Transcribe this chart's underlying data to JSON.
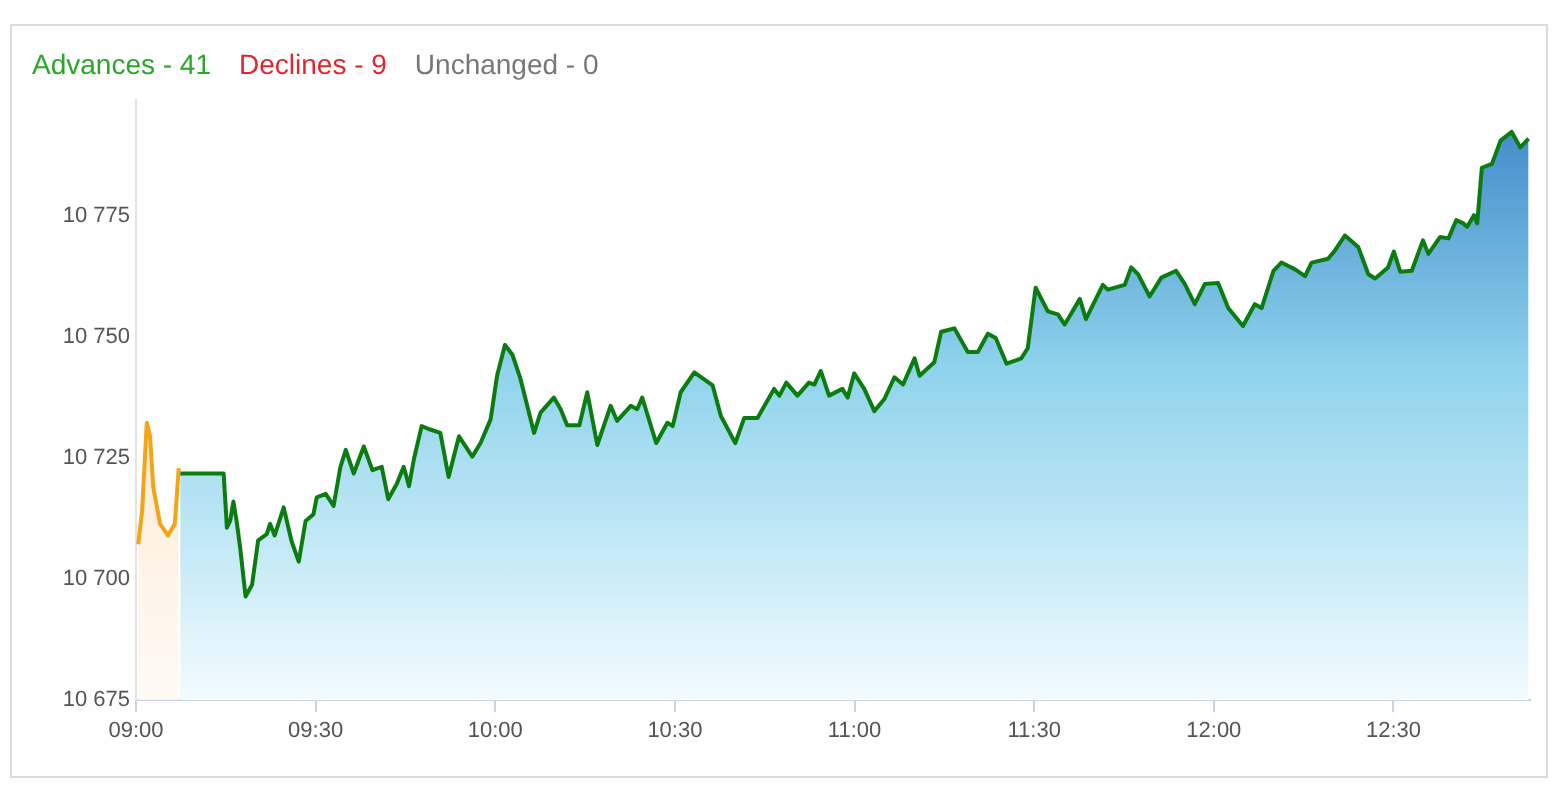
{
  "chart_data": {
    "type": "area",
    "annotations": [
      "Advances - 41",
      "Declines - 9",
      "Unchanged - 0"
    ],
    "xlim": [
      9,
      12.88
    ],
    "xticks": [
      {
        "value": 9,
        "label": "09:00"
      },
      {
        "value": 9.5,
        "label": "09:30"
      },
      {
        "value": 10,
        "label": "10:00"
      },
      {
        "value": 10.5,
        "label": "10:30"
      },
      {
        "value": 11,
        "label": "11:00"
      },
      {
        "value": 11.5,
        "label": "11:30"
      },
      {
        "value": 12,
        "label": "12:00"
      },
      {
        "value": 12.5,
        "label": "12:30"
      }
    ],
    "ylim": [
      10675,
      10799
    ],
    "yticks": [
      {
        "value": 10675,
        "label": "10 675"
      },
      {
        "value": 10700,
        "label": "10 700"
      },
      {
        "value": 10725,
        "label": "10 725"
      },
      {
        "value": 10750,
        "label": "10 750"
      },
      {
        "value": 10775,
        "label": "10 775"
      }
    ],
    "series": [
      {
        "color": "#f5a418",
        "x": [
          9.006,
          9.017,
          9.03,
          9.039,
          9.048,
          9.067,
          9.089,
          9.108,
          9.119
        ],
        "values": [
          10707.2,
          10714.1,
          10732.3,
          10729.5,
          10719,
          10711.4,
          10709,
          10711.4,
          10722.9
        ]
      },
      {
        "color": "#0b7d10",
        "x": [
          9.123,
          9.244,
          9.253,
          9.262,
          9.271,
          9.28,
          9.29,
          9.305,
          9.323,
          9.34,
          9.364,
          9.373,
          9.386,
          9.411,
          9.433,
          9.453,
          9.472,
          9.494,
          9.503,
          9.528,
          9.55,
          9.569,
          9.584,
          9.606,
          9.634,
          9.658,
          9.684,
          9.702,
          9.726,
          9.745,
          9.76,
          9.773,
          9.795,
          9.819,
          9.847,
          9.87,
          9.899,
          9.936,
          9.959,
          9.987,
          10.005,
          10.027,
          10.048,
          10.07,
          10.108,
          10.126,
          10.163,
          10.182,
          10.2,
          10.234,
          10.256,
          10.284,
          10.321,
          10.339,
          10.377,
          10.395,
          10.409,
          10.423,
          10.448,
          10.479,
          10.494,
          10.516,
          10.554,
          10.605,
          10.628,
          10.668,
          10.693,
          10.73,
          10.776,
          10.791,
          10.81,
          10.841,
          10.873,
          10.888,
          10.906,
          10.929,
          10.966,
          10.981,
          10.999,
          11.027,
          11.055,
          11.083,
          11.111,
          11.135,
          11.167,
          11.181,
          11.222,
          11.241,
          11.278,
          11.315,
          11.343,
          11.371,
          11.393,
          11.423,
          11.464,
          11.482,
          11.504,
          11.538,
          11.566,
          11.585,
          11.627,
          11.644,
          11.691,
          11.705,
          11.752,
          11.77,
          11.789,
          11.821,
          11.854,
          11.895,
          11.919,
          11.947,
          11.975,
          12.012,
          12.04,
          12.081,
          12.114,
          12.133,
          12.166,
          12.188,
          12.226,
          12.254,
          12.272,
          12.318,
          12.337,
          12.365,
          12.402,
          12.43,
          12.449,
          12.485,
          12.501,
          12.519,
          12.551,
          12.582,
          12.597,
          12.63,
          12.653,
          12.675,
          12.694,
          12.705,
          12.724,
          12.733,
          12.746,
          12.774,
          12.798,
          12.829,
          12.853,
          12.876
        ],
        "values": [
          10721.8,
          10721.8,
          10710.6,
          10712,
          10716,
          10712,
          10706.4,
          10696.4,
          10698.8,
          10708,
          10709.3,
          10711.4,
          10709,
          10714.8,
          10707.8,
          10703.6,
          10712,
          10713.4,
          10716.9,
          10717.6,
          10715.1,
          10723.2,
          10726.7,
          10721.8,
          10727.4,
          10722.5,
          10723.2,
          10716.5,
          10719.7,
          10723.2,
          10719.2,
          10724.6,
          10731.6,
          10730.9,
          10730.2,
          10721.1,
          10729.5,
          10725.3,
          10728.1,
          10733,
          10742,
          10748.4,
          10746.3,
          10741.4,
          10730.2,
          10734.4,
          10737.5,
          10735.1,
          10731.8,
          10731.8,
          10738.6,
          10727.7,
          10735.8,
          10732.7,
          10735.8,
          10735.1,
          10737.5,
          10734.1,
          10728.1,
          10732.3,
          10731.6,
          10738.6,
          10742.7,
          10740,
          10733.7,
          10728.1,
          10733.3,
          10733.3,
          10739.3,
          10737.9,
          10740.6,
          10737.9,
          10740.6,
          10740.2,
          10743,
          10737.9,
          10739.3,
          10737.5,
          10742.5,
          10739.3,
          10734.7,
          10737.2,
          10741.7,
          10740.2,
          10745.6,
          10742,
          10744.8,
          10751.1,
          10751.8,
          10746.9,
          10746.9,
          10750.7,
          10749.8,
          10744.5,
          10745.6,
          10747.7,
          10760.2,
          10755.3,
          10754.7,
          10752.6,
          10757.9,
          10753.7,
          10760.8,
          10759.8,
          10760.8,
          10764.4,
          10763,
          10758.4,
          10762.3,
          10763.7,
          10761,
          10756.8,
          10761,
          10761.2,
          10756,
          10752.3,
          10756.8,
          10756,
          10763.7,
          10765.4,
          10764,
          10762.6,
          10765.4,
          10766.2,
          10767.9,
          10771,
          10768.6,
          10763,
          10762.1,
          10764.4,
          10767.7,
          10763.5,
          10763.7,
          10770,
          10767.2,
          10770.7,
          10770.4,
          10774.2,
          10773.5,
          10772.8,
          10775.2,
          10773.5,
          10785,
          10785.8,
          10790.6,
          10792.4,
          10789.2,
          10791
        ]
      }
    ]
  }
}
